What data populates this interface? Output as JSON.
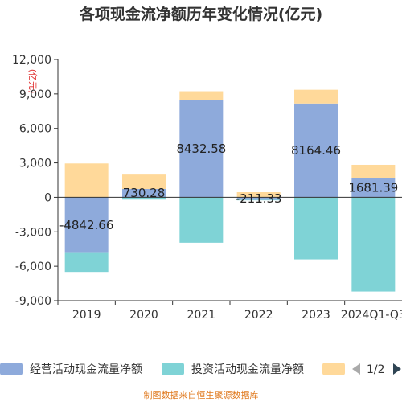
{
  "chart_data": {
    "type": "bar",
    "stacked": true,
    "title": "各项现金流净额历年变化情况(亿元)",
    "unit_label": "(亿元)",
    "categories": [
      "2019",
      "2020",
      "2021",
      "2022",
      "2023",
      "2024Q1-Q3"
    ],
    "ylim": [
      -9000,
      12000
    ],
    "yticks": [
      -9000,
      -6000,
      -3000,
      0,
      3000,
      6000,
      9000,
      12000
    ],
    "ytick_labels": [
      "-9,000",
      "-6,000",
      "-3,000",
      "0",
      "3,000",
      "6,000",
      "9,000",
      "12,000"
    ],
    "grid": false,
    "legend_position": "bottom",
    "series": [
      {
        "name": "经营活动现金流量净额",
        "color": "#8eaadb",
        "values": [
          -4842.66,
          730.28,
          8432.58,
          -211.33,
          8164.46,
          1681.39
        ],
        "label_texts": [
          "-4842.66",
          "730.28",
          "8432.58",
          "-211.33",
          "8164.46",
          "1681.39"
        ]
      },
      {
        "name": "投资活动现金流量净额",
        "color": "#7fd3d6",
        "values": [
          -1650,
          -200,
          -3950,
          -50,
          -5400,
          -8200
        ]
      },
      {
        "name": "",
        "color": "#ffd99a",
        "values": [
          2950,
          1250,
          800,
          450,
          1200,
          1150
        ]
      }
    ],
    "legend_page": "1/2",
    "source": "制图数据来自恒生聚源数据库"
  }
}
